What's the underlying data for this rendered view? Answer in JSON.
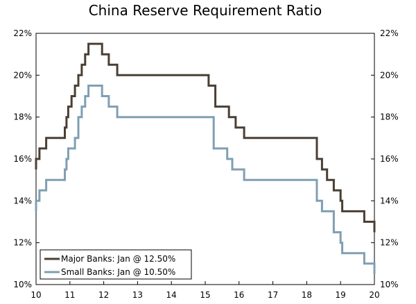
{
  "chart_data": {
    "type": "line",
    "title": "China Reserve Requirement Ratio",
    "xlabel": "",
    "ylabel": "",
    "xlim": [
      10,
      20
    ],
    "ylim": [
      10,
      22
    ],
    "x_ticks": [
      10,
      11,
      12,
      13,
      14,
      15,
      16,
      17,
      18,
      19,
      20
    ],
    "x_tick_labels": [
      "10",
      "11",
      "12",
      "13",
      "14",
      "15",
      "16",
      "17",
      "18",
      "19",
      "20"
    ],
    "y_ticks": [
      10,
      12,
      14,
      16,
      18,
      20,
      22
    ],
    "y_tick_labels": [
      "10%",
      "12%",
      "14%",
      "16%",
      "18%",
      "20%",
      "22%"
    ],
    "legend_position": "bottom-left",
    "series": [
      {
        "name": "Major Banks: Jan @ 12.50%",
        "color": "#4a3f35",
        "points": [
          [
            10.0,
            15.5
          ],
          [
            10.0,
            16.0
          ],
          [
            10.1,
            16.0
          ],
          [
            10.1,
            16.5
          ],
          [
            10.3,
            16.5
          ],
          [
            10.3,
            17.0
          ],
          [
            10.85,
            17.0
          ],
          [
            10.85,
            17.5
          ],
          [
            10.9,
            17.5
          ],
          [
            10.9,
            18.0
          ],
          [
            10.95,
            18.0
          ],
          [
            10.95,
            18.5
          ],
          [
            11.05,
            18.5
          ],
          [
            11.05,
            19.0
          ],
          [
            11.15,
            19.0
          ],
          [
            11.15,
            19.5
          ],
          [
            11.25,
            19.5
          ],
          [
            11.25,
            20.0
          ],
          [
            11.35,
            20.0
          ],
          [
            11.35,
            20.5
          ],
          [
            11.45,
            20.5
          ],
          [
            11.45,
            21.0
          ],
          [
            11.55,
            21.0
          ],
          [
            11.55,
            21.5
          ],
          [
            11.95,
            21.5
          ],
          [
            11.95,
            21.0
          ],
          [
            12.15,
            21.0
          ],
          [
            12.15,
            20.5
          ],
          [
            12.4,
            20.5
          ],
          [
            12.4,
            20.0
          ],
          [
            15.1,
            20.0
          ],
          [
            15.1,
            19.5
          ],
          [
            15.3,
            19.5
          ],
          [
            15.3,
            18.5
          ],
          [
            15.7,
            18.5
          ],
          [
            15.7,
            18.0
          ],
          [
            15.9,
            18.0
          ],
          [
            15.9,
            17.5
          ],
          [
            16.15,
            17.5
          ],
          [
            16.15,
            17.0
          ],
          [
            18.3,
            17.0
          ],
          [
            18.3,
            16.0
          ],
          [
            18.45,
            16.0
          ],
          [
            18.45,
            15.5
          ],
          [
            18.6,
            15.5
          ],
          [
            18.6,
            15.0
          ],
          [
            18.8,
            15.0
          ],
          [
            18.8,
            14.5
          ],
          [
            19.0,
            14.5
          ],
          [
            19.0,
            14.0
          ],
          [
            19.05,
            14.0
          ],
          [
            19.05,
            13.5
          ],
          [
            19.7,
            13.5
          ],
          [
            19.7,
            13.0
          ],
          [
            20.0,
            13.0
          ],
          [
            20.0,
            12.5
          ]
        ]
      },
      {
        "name": "Small Banks: Jan @ 10.50%",
        "color": "#7f9fb3",
        "points": [
          [
            10.0,
            13.5
          ],
          [
            10.0,
            14.0
          ],
          [
            10.1,
            14.0
          ],
          [
            10.1,
            14.5
          ],
          [
            10.3,
            14.5
          ],
          [
            10.3,
            15.0
          ],
          [
            10.85,
            15.0
          ],
          [
            10.85,
            15.5
          ],
          [
            10.9,
            15.5
          ],
          [
            10.9,
            16.0
          ],
          [
            10.95,
            16.0
          ],
          [
            10.95,
            16.5
          ],
          [
            11.15,
            16.5
          ],
          [
            11.15,
            17.0
          ],
          [
            11.25,
            17.0
          ],
          [
            11.25,
            18.0
          ],
          [
            11.35,
            18.0
          ],
          [
            11.35,
            18.5
          ],
          [
            11.45,
            18.5
          ],
          [
            11.45,
            19.0
          ],
          [
            11.55,
            19.0
          ],
          [
            11.55,
            19.5
          ],
          [
            11.95,
            19.5
          ],
          [
            11.95,
            19.0
          ],
          [
            12.15,
            19.0
          ],
          [
            12.15,
            18.5
          ],
          [
            12.4,
            18.5
          ],
          [
            12.4,
            18.0
          ],
          [
            15.25,
            18.0
          ],
          [
            15.25,
            16.5
          ],
          [
            15.65,
            16.5
          ],
          [
            15.65,
            16.0
          ],
          [
            15.8,
            16.0
          ],
          [
            15.8,
            15.5
          ],
          [
            16.15,
            15.5
          ],
          [
            16.15,
            15.0
          ],
          [
            18.3,
            15.0
          ],
          [
            18.3,
            14.0
          ],
          [
            18.45,
            14.0
          ],
          [
            18.45,
            13.5
          ],
          [
            18.8,
            13.5
          ],
          [
            18.8,
            12.5
          ],
          [
            19.0,
            12.5
          ],
          [
            19.0,
            12.0
          ],
          [
            19.05,
            12.0
          ],
          [
            19.05,
            11.5
          ],
          [
            19.7,
            11.5
          ],
          [
            19.7,
            11.0
          ],
          [
            20.0,
            11.0
          ],
          [
            20.0,
            10.5
          ]
        ]
      }
    ]
  }
}
